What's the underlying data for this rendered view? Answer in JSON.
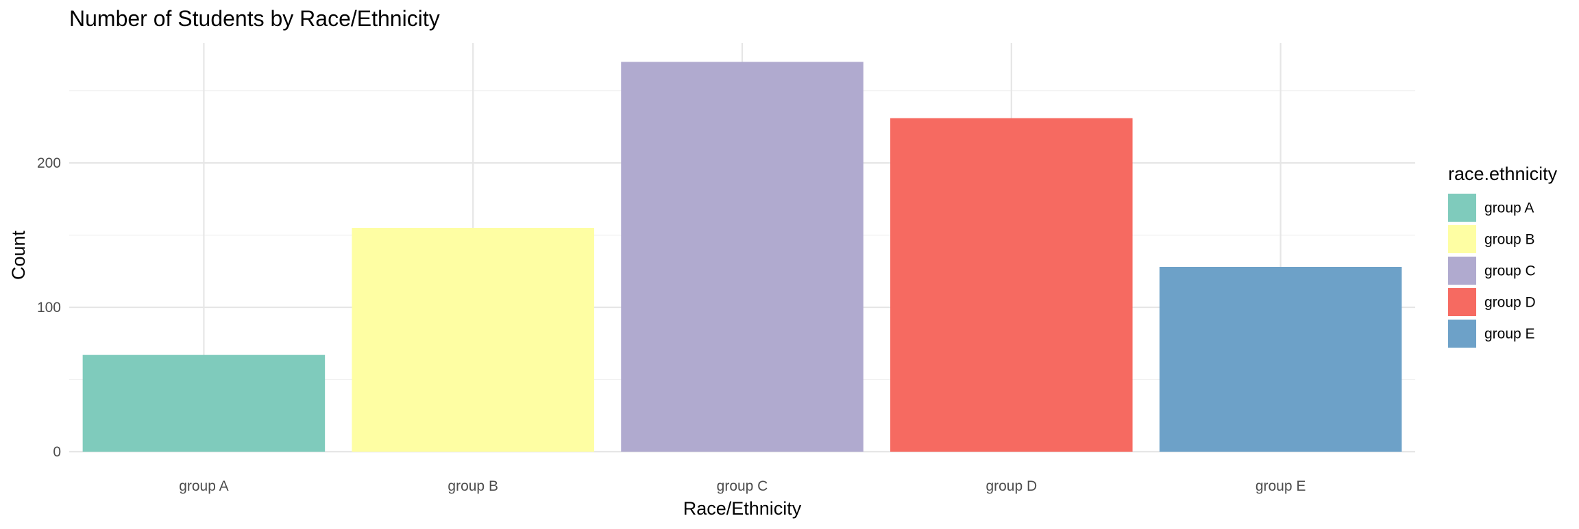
{
  "chart_data": {
    "type": "bar",
    "title": "Number of Students by Race/Ethnicity",
    "xlabel": "Race/Ethnicity",
    "ylabel": "Count",
    "categories": [
      "group A",
      "group B",
      "group C",
      "group D",
      "group E"
    ],
    "values": [
      67,
      155,
      270,
      231,
      128
    ],
    "colors": [
      "#7fcbbc",
      "#fefea3",
      "#b0aacf",
      "#f66a61",
      "#6da1c8"
    ],
    "ylim": [
      0,
      283
    ],
    "yticks": [
      0,
      100,
      200
    ],
    "grid": true,
    "legend": {
      "title": "race.ethnicity",
      "placement": "right",
      "entries": [
        "group A",
        "group B",
        "group C",
        "group D",
        "group E"
      ]
    }
  }
}
